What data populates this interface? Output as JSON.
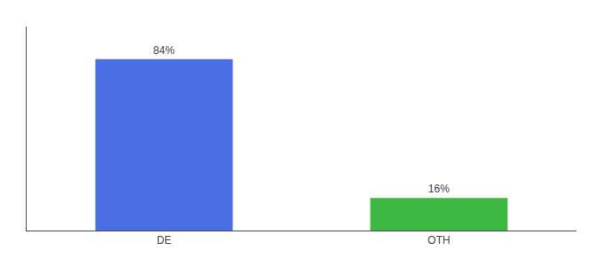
{
  "chart_data": {
    "type": "bar",
    "categories": [
      "DE",
      "OTH"
    ],
    "values": [
      84,
      16
    ],
    "value_labels": [
      "84%",
      "16%"
    ],
    "colors": [
      "#4a6fe3",
      "#3cb843"
    ],
    "ylim": [
      0,
      100
    ],
    "yticks": [],
    "data_labels": true,
    "tick_labels": "x",
    "grid": false
  }
}
